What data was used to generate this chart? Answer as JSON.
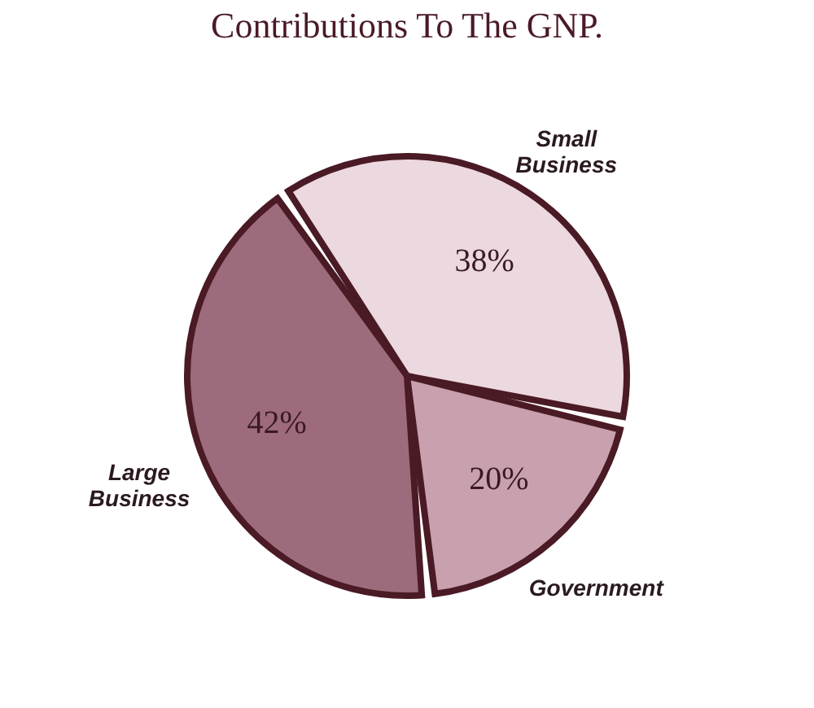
{
  "chart_data": {
    "type": "pie",
    "title": "Contributions To The GNP.",
    "categories": [
      "Small Business",
      "Government",
      "Large Business"
    ],
    "values": [
      38,
      20,
      42
    ],
    "colors": [
      "#ecd8df",
      "#c9a1ae",
      "#9e6b7c"
    ],
    "value_labels": [
      "38%",
      "20%",
      "42%"
    ],
    "legend": false
  }
}
